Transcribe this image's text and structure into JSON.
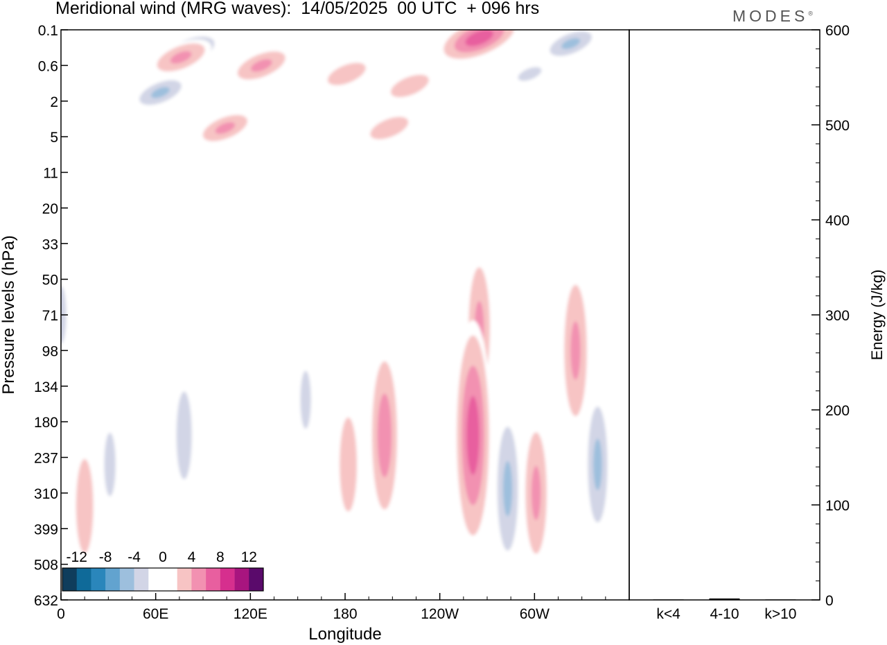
{
  "title": "Meridional wind (MRG waves):  14/05/2025  00 UTC  + 096 hrs",
  "logo": "MODES",
  "logo_mark": "®",
  "chart_data": [
    {
      "type": "heatmap",
      "title": "Meridional wind (MRG waves):  14/05/2025  00 UTC  + 096 hrs",
      "xlabel": "Longitude",
      "ylabel": "Pressure levels (hPa)",
      "x_ticks": [
        "0",
        "60E",
        "120E",
        "180",
        "120W",
        "60W"
      ],
      "x_tick_values": [
        0,
        60,
        120,
        180,
        240,
        300
      ],
      "xlim": [
        0,
        360
      ],
      "y_ticks": [
        "0.1",
        "0.6",
        "2",
        "5",
        "11",
        "20",
        "33",
        "50",
        "71",
        "98",
        "134",
        "180",
        "237",
        "310",
        "399",
        "508",
        "632"
      ],
      "y_scale": "model levels (log-like, inverted)",
      "colorbar": {
        "ticks": [
          "-12",
          "-8",
          "-4",
          "0",
          "4",
          "8",
          "12"
        ],
        "levels": [
          -14,
          -12,
          -10,
          -8,
          -6,
          -4,
          -2,
          2,
          4,
          6,
          8,
          10,
          12,
          14
        ],
        "colors": [
          "#0f3d5c",
          "#0f6a99",
          "#2a86bb",
          "#62a3cf",
          "#9dbfdd",
          "#d2d5e6",
          "#ffffff",
          "#ffffff",
          "#f7c4c4",
          "#f291b1",
          "#e85f9f",
          "#d62f8e",
          "#a8157f",
          "#5a0a6b"
        ]
      },
      "features": [
        {
          "lon": 81,
          "p": "0.3",
          "value": -12
        },
        {
          "lon": 63,
          "p": "1.5",
          "value": -10
        },
        {
          "lon": 76,
          "p": "0.4",
          "value": 9
        },
        {
          "lon": 127,
          "p": "0.6",
          "value": 9
        },
        {
          "lon": 104,
          "p": "4",
          "value": 8
        },
        {
          "lon": 181,
          "p": "0.8",
          "value": 7
        },
        {
          "lon": 221,
          "p": "1.2",
          "value": 7
        },
        {
          "lon": 265,
          "p": "0.15",
          "value": 14
        },
        {
          "lon": 323,
          "p": "0.2",
          "value": -10
        },
        {
          "lon": 297,
          "p": "0.8",
          "value": -7
        },
        {
          "lon": 208,
          "p": "4",
          "value": 7
        },
        {
          "lon": 265,
          "p": "80",
          "value": 8
        },
        {
          "lon": 326,
          "p": "98",
          "value": 9
        },
        {
          "lon": 78,
          "p": "200",
          "value": -8
        },
        {
          "lon": 155,
          "p": "150",
          "value": -6
        },
        {
          "lon": 205,
          "p": "200",
          "value": 10
        },
        {
          "lon": 261,
          "p": "200",
          "value": 14
        },
        {
          "lon": 283,
          "p": "300",
          "value": -11
        },
        {
          "lon": 301,
          "p": "310",
          "value": 8
        },
        {
          "lon": 340,
          "p": "250",
          "value": -10
        },
        {
          "lon": 31,
          "p": "250",
          "value": -7
        },
        {
          "lon": 15,
          "p": "340",
          "value": 6
        },
        {
          "lon": 182,
          "p": "250",
          "value": 6
        },
        {
          "lon": 0,
          "p": "71",
          "value": -6
        }
      ]
    },
    {
      "type": "bar",
      "categories": [
        "k<4",
        "4-10",
        "k>10"
      ],
      "values": [
        0.5,
        1.5,
        0.5
      ],
      "ylabel": "Energy (J/kg)",
      "ylim": [
        0,
        600
      ],
      "y_ticks": [
        "0",
        "100",
        "200",
        "300",
        "400",
        "500",
        "600"
      ]
    }
  ]
}
